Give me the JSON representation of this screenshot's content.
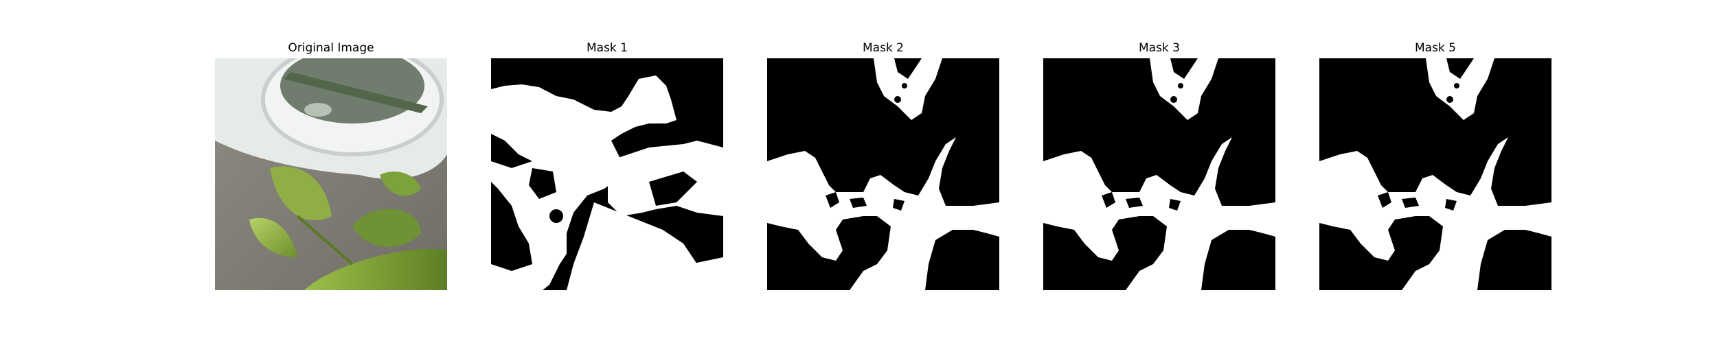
{
  "panels": [
    {
      "title": "Original Image",
      "kind": "photo"
    },
    {
      "title": "Mask 1",
      "kind": "mask-a"
    },
    {
      "title": "Mask 2",
      "kind": "mask-b"
    },
    {
      "title": "Mask 3",
      "kind": "mask-b"
    },
    {
      "title": "Mask 5",
      "kind": "mask-b"
    }
  ],
  "colors": {
    "mask_background": "#000000",
    "mask_foreground": "#ffffff"
  }
}
